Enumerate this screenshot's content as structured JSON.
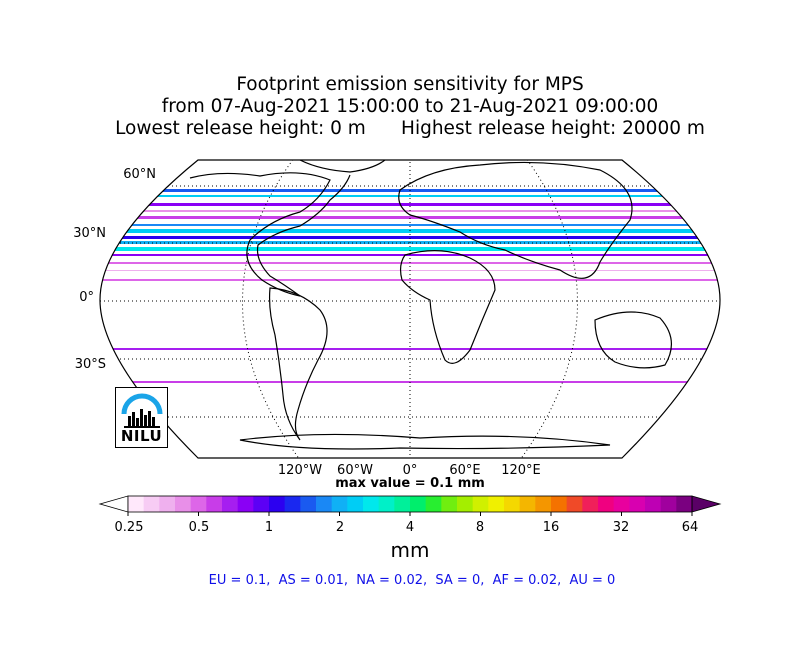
{
  "title": {
    "line1": "Footprint emission sensitivity for MPS",
    "line2": "from 07-Aug-2021 15:00:00 to 21-Aug-2021 09:00:00",
    "line3": "Lowest release height: 0 m      Highest release height: 20000 m"
  },
  "lat_labels": [
    "60°N",
    "30°N",
    "0°",
    "30°S"
  ],
  "lon_labels": [
    "120°W",
    "60°W",
    "0°",
    "60°E",
    "120°E"
  ],
  "max_value": "max value = 0.1 mm",
  "colorbar": {
    "ticks": [
      "0.25",
      "0.5",
      "1",
      "2",
      "4",
      "8",
      "16",
      "32",
      "64"
    ],
    "unit": "mm",
    "colors": [
      "#ffe8fb",
      "#f7ccf4",
      "#efb0ee",
      "#e88fe8",
      "#dd66e8",
      "#c83de8",
      "#a61ef0",
      "#8a00f5",
      "#5c00f5",
      "#2c00f0",
      "#1a28f0",
      "#1a5af0",
      "#1a88f5",
      "#10b0f5",
      "#00cdf5",
      "#00e8ec",
      "#00f0c8",
      "#00f09a",
      "#00ee6c",
      "#28ee30",
      "#70ee10",
      "#a4ee00",
      "#d0f000",
      "#f0f000",
      "#f4d800",
      "#f4b600",
      "#f49600",
      "#f47200",
      "#f04a28",
      "#f0205a",
      "#f00080",
      "#e8009e",
      "#d800b0",
      "#be00b4",
      "#a0009e",
      "#7a0080"
    ]
  },
  "regions_text": "EU = 0.1,  AS = 0.01,  NA = 0.02,  SA = 0,  AF = 0.02,  AU = 0",
  "logo": {
    "text": "NILU",
    "accent": "#1aa4e8"
  }
}
